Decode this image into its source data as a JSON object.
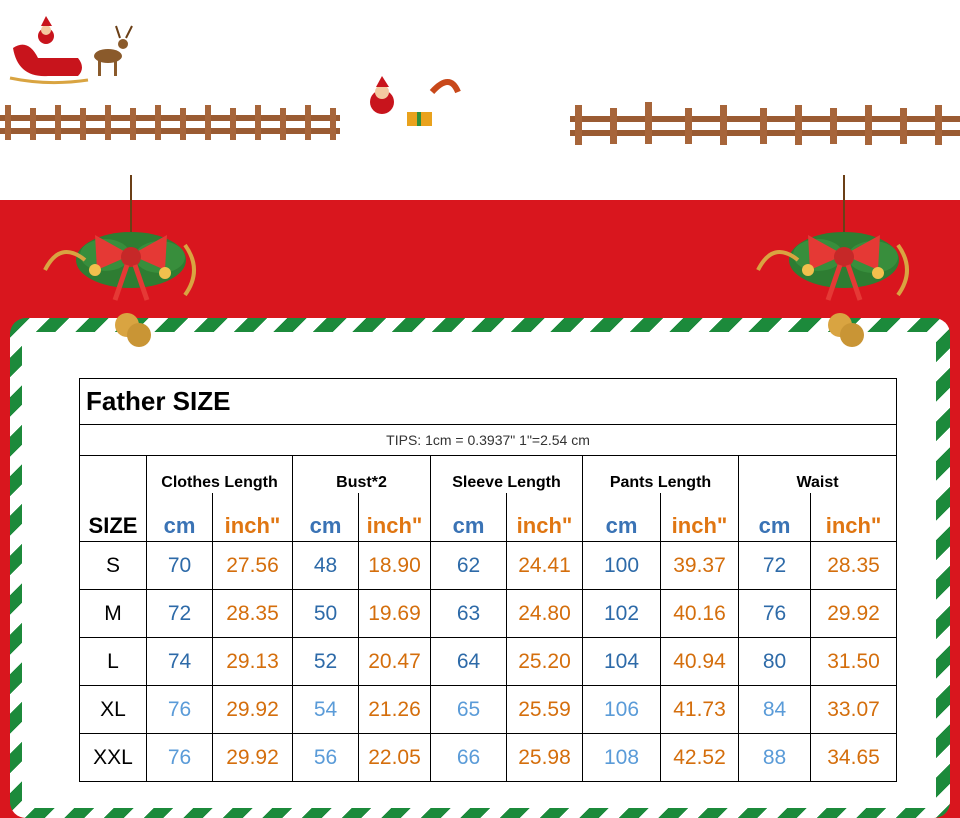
{
  "table": {
    "title": "Father SIZE",
    "tips": "TIPS: 1cm = 0.3937\"   1\"=2.54 cm",
    "groups": [
      "Clothes Length",
      "Bust*2",
      "Sleeve Length",
      "Pants Length",
      "Waist"
    ],
    "size_label": "SIZE",
    "unit_cm": "cm",
    "unit_inch": "inch\"",
    "rows": [
      {
        "size": "S",
        "values": [
          "70",
          "27.56",
          "48",
          "18.90",
          "62",
          "24.41",
          "100",
          "39.37",
          "72",
          "28.35"
        ]
      },
      {
        "size": "M",
        "values": [
          "72",
          "28.35",
          "50",
          "19.69",
          "63",
          "24.80",
          "102",
          "40.16",
          "76",
          "29.92"
        ]
      },
      {
        "size": "L",
        "values": [
          "74",
          "29.13",
          "52",
          "20.47",
          "64",
          "25.20",
          "104",
          "40.94",
          "80",
          "31.50"
        ]
      },
      {
        "size": "XL",
        "values": [
          "76",
          "29.92",
          "54",
          "21.26",
          "65",
          "25.59",
          "106",
          "41.73",
          "84",
          "33.07"
        ]
      },
      {
        "size": "XXL",
        "values": [
          "76",
          "29.92",
          "56",
          "22.05",
          "66",
          "25.98",
          "108",
          "42.52",
          "88",
          "34.65"
        ]
      }
    ]
  },
  "colors": {
    "background_red": "#d9161e",
    "stripe_green": "#1c8a3b",
    "cm_blue": "#3a73b5",
    "inch_orange": "#e07612"
  },
  "decorations": [
    "santa-sleigh-icon",
    "santa-slingshot-icon",
    "wooden-fence",
    "christmas-ornament-bow-bells"
  ]
}
